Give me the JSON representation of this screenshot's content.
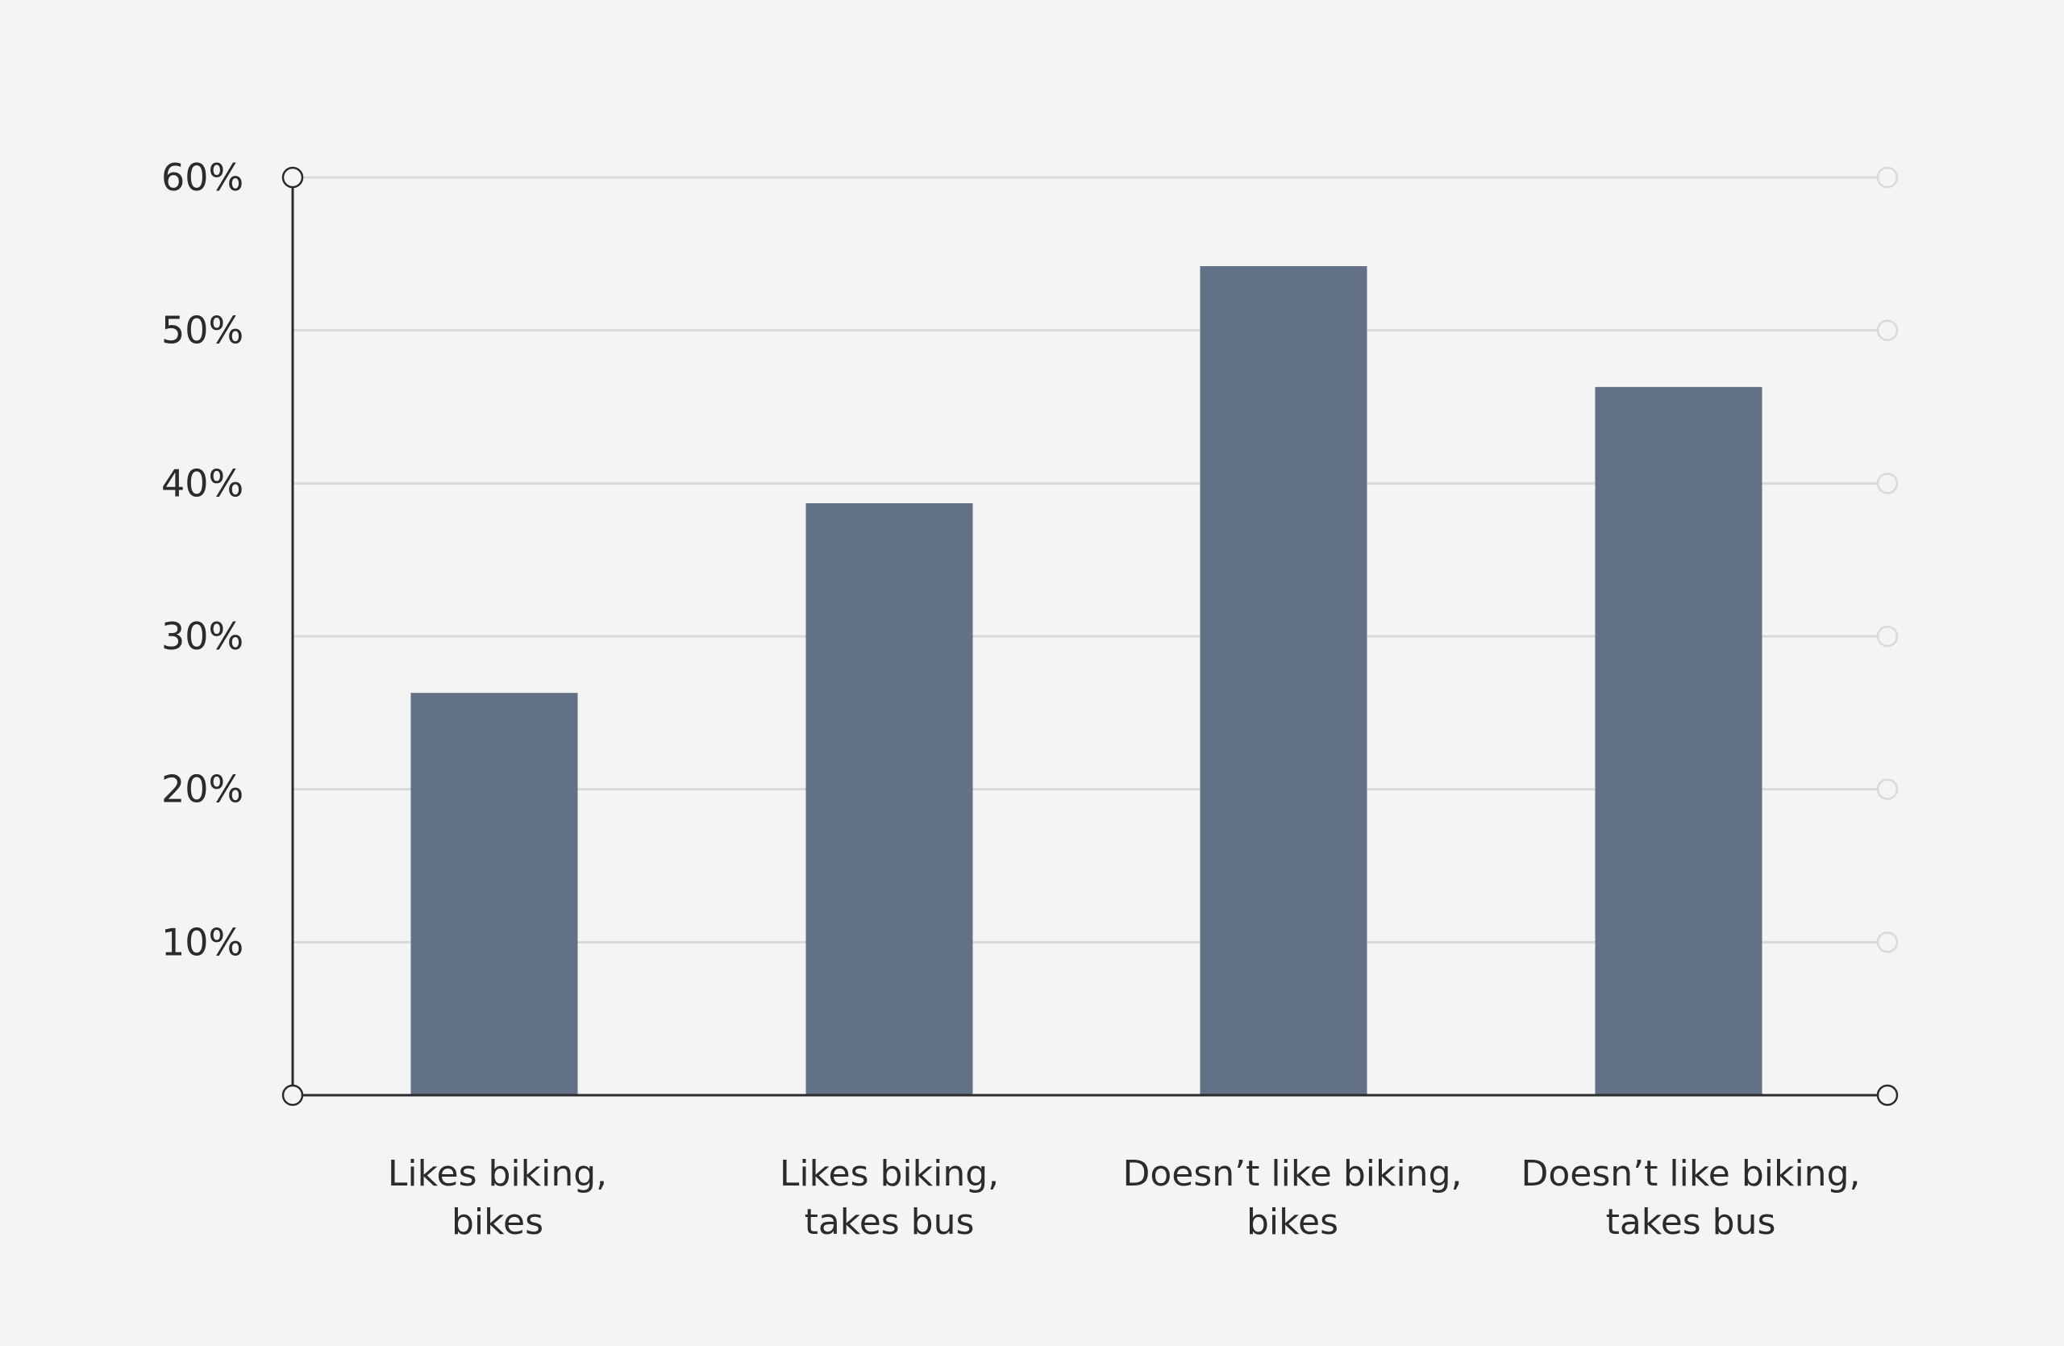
{
  "chart_data": {
    "type": "bar",
    "title": "",
    "xlabel": "",
    "ylabel": "",
    "categories": [
      [
        "Likes biking,",
        "bikes"
      ],
      [
        "Likes biking,",
        "takes bus"
      ],
      [
        "Doesn’t like biking,",
        "bikes"
      ],
      [
        "Doesn’t like biking,",
        "takes bus"
      ]
    ],
    "values": [
      26.3,
      38.7,
      54.2,
      46.3
    ],
    "ylim": [
      0,
      60
    ],
    "yticks": [
      10,
      20,
      30,
      40,
      50,
      60
    ],
    "ytick_labels": [
      "10%",
      "20%",
      "30%",
      "40%",
      "50%",
      "60%"
    ],
    "grid": true,
    "legend": "none",
    "colors": {
      "bar": "#637186",
      "axis": "#2b2b2d",
      "grid": "#d9d9d9",
      "background": "#f4f4f4"
    }
  }
}
